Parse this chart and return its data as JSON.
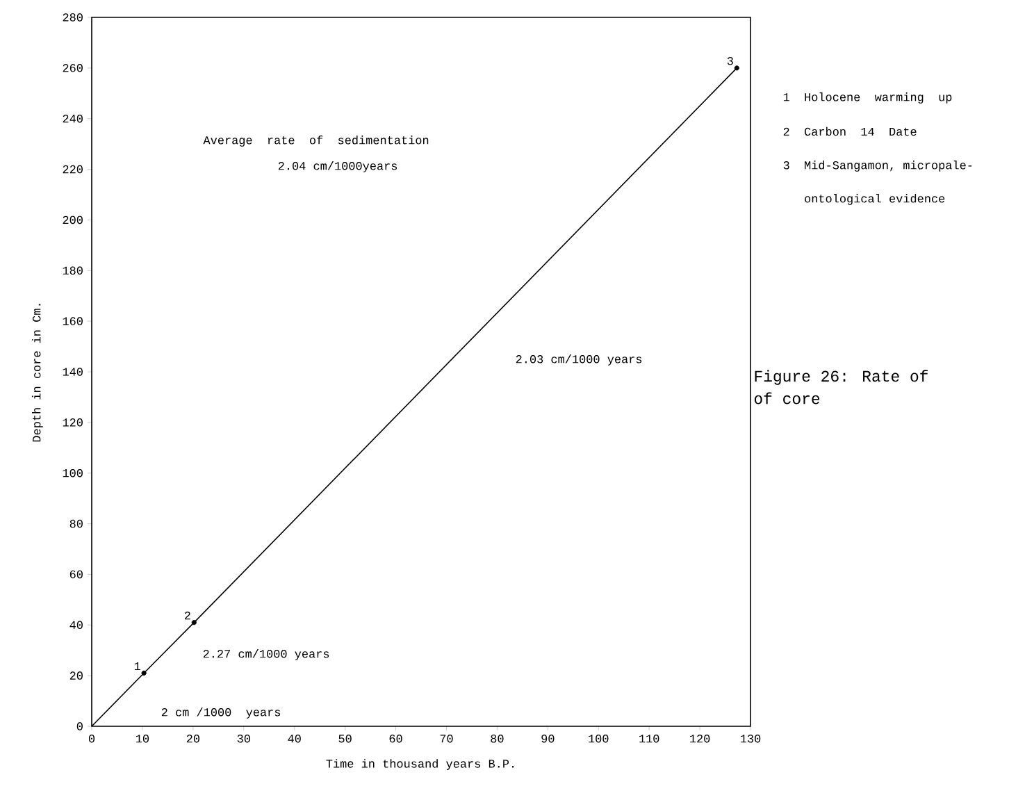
{
  "chart_data": {
    "type": "line",
    "xlabel": "Time  in  thousand  years  B.P.",
    "ylabel": "Depth in core in Cm.",
    "series": [
      {
        "color": "#000000",
        "marker": "none",
        "x": [
          0,
          10.3,
          20.2,
          127.3
        ],
        "values": [
          0,
          21,
          41,
          260
        ]
      },
      {
        "type": "scatter",
        "color": "#000000",
        "marker": "circle",
        "x": [
          10.3,
          20.2,
          127.3
        ],
        "values": [
          21,
          41,
          260
        ]
      }
    ],
    "xlim": [
      0,
      130
    ],
    "ylim": [
      0,
      280
    ],
    "xticks": [
      0,
      10,
      20,
      30,
      40,
      50,
      60,
      70,
      80,
      90,
      100,
      110,
      120,
      130
    ],
    "yticks": [
      0,
      20,
      40,
      60,
      80,
      100,
      120,
      140,
      160,
      180,
      200,
      220,
      240,
      260,
      280
    ],
    "grid": false,
    "annotations": [
      {
        "text": "1",
        "x": 10.3,
        "y": 21
      },
      {
        "text": "2",
        "x": 20.2,
        "y": 41
      },
      {
        "text": "3",
        "x": 127.3,
        "y": 260
      },
      "Average  rate  of  sedimentation",
      "2.04 cm/1000years",
      "2.03 cm/1000 years",
      "2.27 cm/1000 years",
      "2 cm /1000  years",
      "1  Holocene  warming  up",
      "2  Carbon  14  Date",
      "3  Mid-Sangamon, micropale-",
      "   ontological evidence",
      "Figure 26:  Rate of",
      "of core"
    ]
  }
}
